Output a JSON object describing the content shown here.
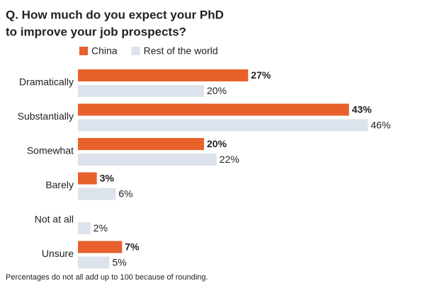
{
  "chart_data": {
    "type": "bar",
    "orientation": "horizontal",
    "title": [
      "Q. How much do you expect your PhD",
      "to improve your job prospects?"
    ],
    "categories": [
      "Dramatically",
      "Substantially",
      "Somewhat",
      "Barely",
      "Not at all",
      "Unsure"
    ],
    "series": [
      {
        "name": "China",
        "color": "#e8602c",
        "values": [
          27,
          43,
          20,
          3,
          null,
          7
        ],
        "value_labels": [
          "27%",
          "43%",
          "20%",
          "3%",
          null,
          "7%"
        ]
      },
      {
        "name": "Rest of the world",
        "color": "#dde3ec",
        "values": [
          20,
          46,
          22,
          6,
          2,
          5
        ],
        "value_labels": [
          "20%",
          "46%",
          "22%",
          "6%",
          "2%",
          "5%"
        ]
      }
    ],
    "footnote": "Percentages do not all add up to 100 because of rounding."
  }
}
